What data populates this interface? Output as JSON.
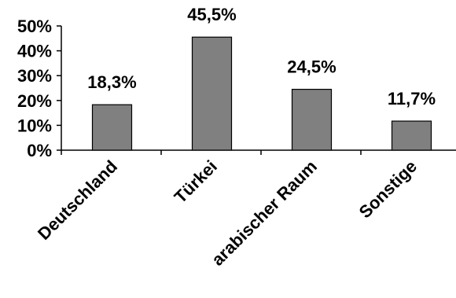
{
  "chart_data": {
    "type": "bar",
    "categories": [
      "Deutschland",
      "Türkei",
      "arabischer Raum",
      "Sonstige"
    ],
    "values": [
      18.3,
      45.5,
      24.5,
      11.7
    ],
    "data_labels": [
      "18,3%",
      "45,5%",
      "24,5%",
      "11,7%"
    ],
    "y_ticks": [
      "0%",
      "10%",
      "20%",
      "30%",
      "40%",
      "50%"
    ],
    "ylim": [
      0,
      50
    ],
    "title": "",
    "xlabel": "",
    "ylabel": "",
    "grid": false,
    "legend": "none",
    "colors": {
      "bar_fill": "#808080",
      "bar_stroke": "#000000",
      "axis": "#000000"
    }
  }
}
